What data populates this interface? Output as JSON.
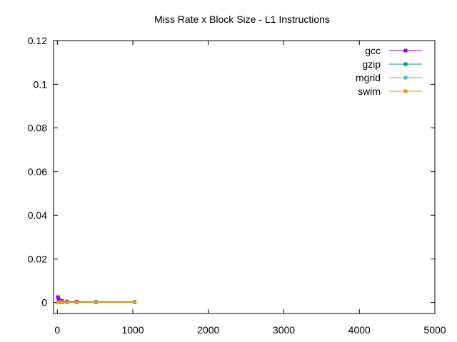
{
  "chart_data": {
    "type": "line",
    "title": "Miss Rate x Block Size - L1 Instructions",
    "xlabel": "",
    "ylabel": "",
    "xlim": [
      -50,
      5000
    ],
    "ylim": [
      -0.005,
      0.12
    ],
    "x_ticks": [
      0,
      1000,
      2000,
      3000,
      4000,
      5000
    ],
    "x_tick_labels": [
      "0",
      "1000",
      "2000",
      "3000",
      "4000",
      "5000"
    ],
    "y_ticks": [
      0,
      0.02,
      0.04,
      0.06,
      0.08,
      0.1,
      0.12
    ],
    "y_tick_labels": [
      "0",
      "0.02",
      "0.04",
      "0.06",
      "0.08",
      "0.1",
      "0.12"
    ],
    "grid": false,
    "legend_position": "top-right",
    "series": [
      {
        "name": "gcc",
        "color": "#9400d3",
        "x": [
          8,
          16,
          32,
          64,
          128,
          256,
          512,
          1024
        ],
        "y": [
          0.0025,
          0.0016,
          0.001,
          0.0007,
          0.0005,
          0.0004,
          0.0003,
          0.0003
        ]
      },
      {
        "name": "gzip",
        "color": "#009e73",
        "x": [
          8,
          16,
          32,
          64,
          128,
          256,
          512,
          1024
        ],
        "y": [
          0.0001,
          0.0001,
          0.0001,
          0.0001,
          0.0001,
          0.0001,
          0.0001,
          0.0001
        ]
      },
      {
        "name": "mgrid",
        "color": "#56b4e9",
        "x": [
          8,
          16,
          32,
          64,
          128,
          256,
          512,
          1024
        ],
        "y": [
          0.0002,
          0.0001,
          0.0001,
          0.0001,
          0.0001,
          0.0001,
          0.0001,
          0.0001
        ]
      },
      {
        "name": "swim",
        "color": "#e69f00",
        "x": [
          8,
          16,
          32,
          64,
          128,
          256,
          512,
          1024
        ],
        "y": [
          0.0001,
          0.0001,
          0.0001,
          0.0001,
          0.0001,
          0.0001,
          0.0001,
          0.0001
        ]
      }
    ]
  }
}
